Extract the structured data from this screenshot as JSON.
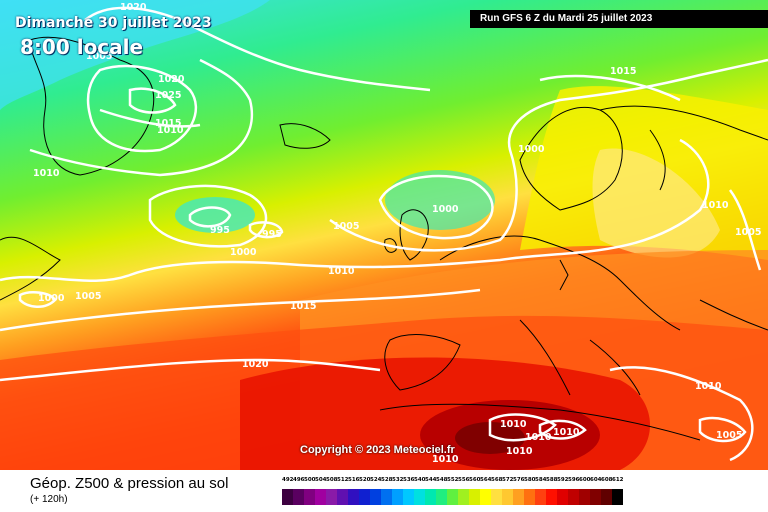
{
  "header": {
    "date": "Dimanche 30 juillet 2023",
    "time": "8:00 locale",
    "run": "Run GFS 6 Z du Mardi 25 juillet 2023"
  },
  "map": {
    "copyright": "Copyright © 2023 Meteociel.fr",
    "isobar_labels": [
      "1020",
      "1020",
      "1025",
      "1015",
      "1010",
      "1010",
      "1005",
      "1015",
      "1000",
      "1000",
      "995",
      "995",
      "1000",
      "1005",
      "1010",
      "1000",
      "1005",
      "1015",
      "1010",
      "1005",
      "1020",
      "1010",
      "1010",
      "1010",
      "1010",
      "1010",
      "1005",
      "1010"
    ]
  },
  "legend": {
    "title": "Géop. Z500 & pression au sol",
    "subtitle": "(+ 120h)",
    "values": [
      "492",
      "496",
      "500",
      "504",
      "508",
      "512",
      "516",
      "520",
      "524",
      "528",
      "532",
      "536",
      "540",
      "544",
      "548",
      "552",
      "556",
      "560",
      "564",
      "568",
      "572",
      "576",
      "580",
      "584",
      "588",
      "592",
      "596",
      "600",
      "604",
      "608",
      "612"
    ],
    "colors": [
      "#3d0040",
      "#5a0060",
      "#800080",
      "#a000a0",
      "#8a1aa8",
      "#6010b0",
      "#3010c0",
      "#1020d0",
      "#0040e0",
      "#0070f0",
      "#00a0ff",
      "#00c8ff",
      "#00e0e0",
      "#00e8b0",
      "#20ee80",
      "#60f040",
      "#a0f020",
      "#d8f000",
      "#ffff00",
      "#ffe040",
      "#ffc830",
      "#ffa020",
      "#ff7010",
      "#ff4010",
      "#ff1000",
      "#e00000",
      "#c00000",
      "#a00000",
      "#800000",
      "#600000",
      "#000000"
    ]
  }
}
